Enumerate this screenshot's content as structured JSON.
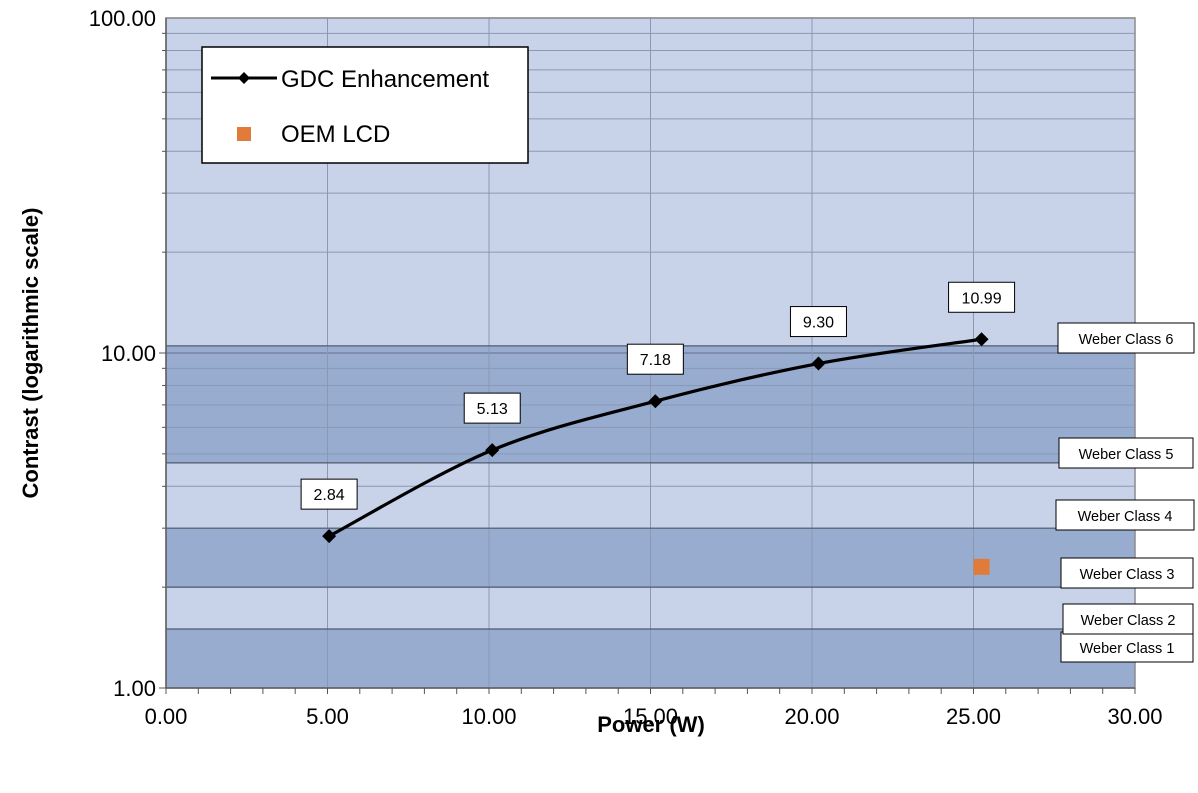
{
  "chart_data": {
    "type": "line",
    "xlabel": "Power (W)",
    "ylabel": "Contrast (logarithmic scale)",
    "xlim": [
      0,
      30
    ],
    "ylim": [
      1,
      100
    ],
    "y_scale": "log",
    "grid": true,
    "x_ticks": [
      "0.00",
      "5.00",
      "10.00",
      "15.00",
      "20.00",
      "25.00",
      "30.00"
    ],
    "y_ticks": [
      "1.00",
      "10.00",
      "100.00"
    ],
    "legend_position": "top-left",
    "series": [
      {
        "name": "GDC Enhancement",
        "color": "#000000",
        "marker": "diamond",
        "x": [
          5.05,
          10.1,
          15.15,
          20.2,
          25.25
        ],
        "y": [
          2.84,
          5.13,
          7.18,
          9.3,
          10.99
        ],
        "labels": [
          "2.84",
          "5.13",
          "7.18",
          "9.30",
          "10.99"
        ]
      },
      {
        "name": "OEM LCD",
        "color": "#e07b39",
        "marker": "square",
        "x": [
          25.25
        ],
        "y": [
          2.3
        ]
      }
    ],
    "bands": [
      {
        "label": "Weber  Class  1",
        "y0": 1.0,
        "y1": 1.5,
        "shade": "dark"
      },
      {
        "label": "Weber  Class  2",
        "y0": 1.5,
        "y1": 2.0,
        "shade": "light"
      },
      {
        "label": "Weber  Class  3",
        "y0": 2.0,
        "y1": 3.0,
        "shade": "dark"
      },
      {
        "label": "Weber  Class  4",
        "y0": 3.0,
        "y1": 4.7,
        "shade": "light"
      },
      {
        "label": "Weber  Class  5",
        "y0": 4.7,
        "y1": 10.5,
        "shade": "dark"
      },
      {
        "label": "Weber  Class  6",
        "y0": 10.5,
        "y1": 100,
        "shade": "light"
      }
    ],
    "colors": {
      "band_light": "#c8d3ea",
      "band_dark": "#98accf",
      "grid": "#8a98b4"
    }
  }
}
